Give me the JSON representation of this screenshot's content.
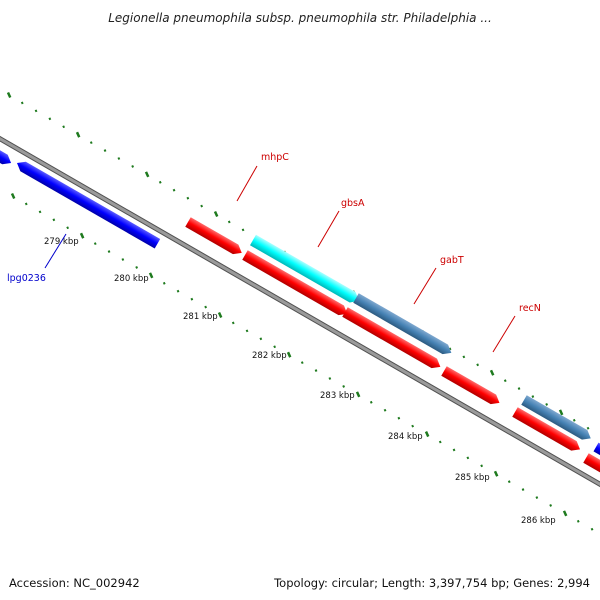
{
  "title": "Legionella pneumophila subsp. pneumophila str. Philadelphia ...",
  "footer": {
    "accession": "Accession: NC_002942",
    "summary": "Topology: circular; Length: 3,397,754 bp; Genes: 2,994"
  },
  "colors": {
    "backbone": "#808080",
    "tick": "#1e7a1e",
    "gene_label": "#cc0000",
    "blue_label": "#0000cc",
    "red": "#ff0000",
    "blue": "#0000ff",
    "cyan": "#00ffff",
    "steel": "#4682b4"
  },
  "scale": {
    "unit": "kbp",
    "labels": [
      "279 kbp",
      "280 kbp",
      "281 kbp",
      "282 kbp",
      "283 kbp",
      "284 kbp",
      "285 kbp",
      "286 kbp"
    ]
  },
  "genes": [
    {
      "name": "lpg0236",
      "strand": "-",
      "color": "blue"
    },
    {
      "name": "mhpC",
      "strand": "+",
      "color": "red"
    },
    {
      "name": "gbsA",
      "strand": "+",
      "color": "cyan"
    },
    {
      "name": "gabT",
      "strand": "+",
      "color": "steel"
    },
    {
      "name": "recN",
      "strand": "+",
      "color": "red"
    }
  ]
}
